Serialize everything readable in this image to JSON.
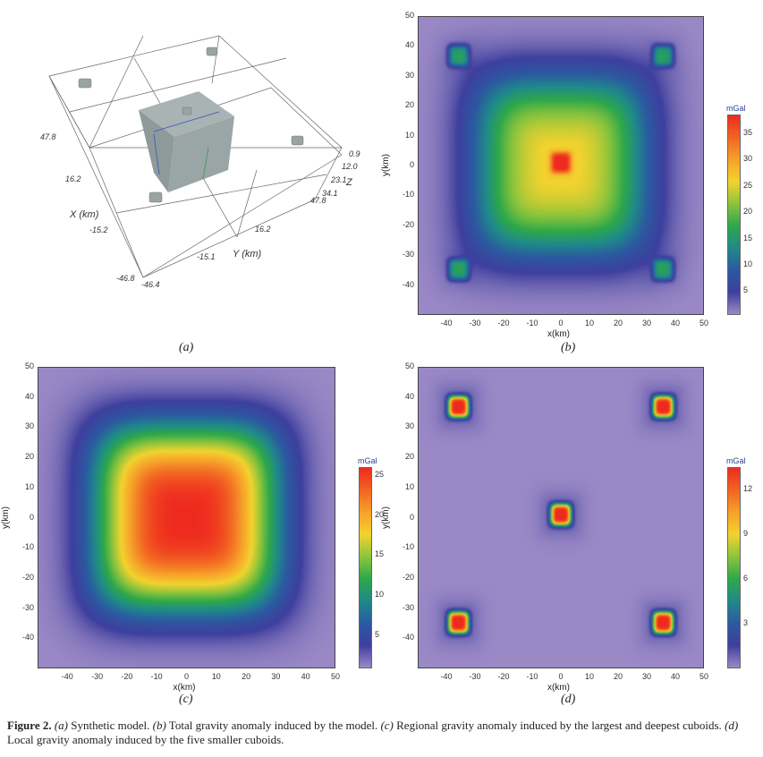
{
  "panel_a": {
    "label": "(a)",
    "axis_labels": {
      "x": "X (km)",
      "y": "Y (km)",
      "z": "Z"
    },
    "x_ticks": [
      "47.8",
      "16.2",
      "-15.2",
      "-46.8"
    ],
    "y_ticks": [
      "-46.4",
      "-15.1",
      "16.2",
      "47.8"
    ],
    "z_ticks": [
      "0.9",
      "12.0",
      "23.1",
      "34.1"
    ]
  },
  "chart_data": [
    {
      "id": "b",
      "label": "(b)",
      "type": "heatmap",
      "title": "Total gravity anomaly",
      "xlabel": "x(km)",
      "ylabel": "y(km)",
      "xlim": [
        -50,
        50
      ],
      "ylim": [
        -50,
        50
      ],
      "x_ticks": [
        "-40",
        "-30",
        "-20",
        "-10",
        "0",
        "10",
        "20",
        "30",
        "40",
        "50"
      ],
      "y_ticks": [
        "50",
        "40",
        "30",
        "20",
        "10",
        "0",
        "-10",
        "-20",
        "-30",
        "-40"
      ],
      "colorbar": {
        "unit": "mGal",
        "range": [
          0.5,
          38.5
        ],
        "ticks": [
          "35",
          "30",
          "25",
          "20",
          "15",
          "10",
          "5"
        ],
        "tick_values": [
          35,
          30,
          25,
          20,
          15,
          10,
          5
        ]
      },
      "peak_mGal": 38
    },
    {
      "id": "c",
      "label": "(c)",
      "type": "heatmap",
      "title": "Regional gravity anomaly",
      "xlabel": "x(km)",
      "ylabel": "y(km)",
      "xlim": [
        -50,
        50
      ],
      "ylim": [
        -50,
        50
      ],
      "x_ticks": [
        "-40",
        "-30",
        "-20",
        "-10",
        "0",
        "10",
        "20",
        "30",
        "40",
        "50"
      ],
      "y_ticks": [
        "50",
        "40",
        "30",
        "20",
        "10",
        "0",
        "-10",
        "-20",
        "-30",
        "-40"
      ],
      "colorbar": {
        "unit": "mGal",
        "range": [
          0.8,
          26
        ],
        "ticks": [
          "25",
          "20",
          "15",
          "10",
          "5"
        ],
        "tick_values": [
          25,
          20,
          15,
          10,
          5
        ]
      },
      "peak_mGal": 26
    },
    {
      "id": "d",
      "label": "(d)",
      "type": "heatmap",
      "title": "Local gravity anomaly",
      "xlabel": "x(km)",
      "ylabel": "y(km)",
      "xlim": [
        -50,
        50
      ],
      "ylim": [
        -50,
        50
      ],
      "x_ticks": [
        "-40",
        "-30",
        "-20",
        "-10",
        "0",
        "10",
        "20",
        "30",
        "40",
        "50"
      ],
      "y_ticks": [
        "50",
        "40",
        "30",
        "20",
        "10",
        "0",
        "-10",
        "-20",
        "-30",
        "-40"
      ],
      "colorbar": {
        "unit": "mGal",
        "range": [
          0,
          13.5
        ],
        "ticks": [
          "12",
          "9",
          "6",
          "3"
        ],
        "tick_values": [
          12,
          9,
          6,
          3
        ]
      },
      "peak_mGal": 13,
      "sources_km": [
        [
          -36,
          37
        ],
        [
          36,
          37
        ],
        [
          0,
          1
        ],
        [
          -36,
          -35
        ],
        [
          36,
          -35
        ]
      ]
    }
  ],
  "caption": {
    "fig": "Figure 2.",
    "parts": [
      {
        "tag": "(a)",
        "text": " Synthetic model. "
      },
      {
        "tag": "(b)",
        "text": " Total gravity anomaly induced by the model. "
      },
      {
        "tag": "(c)",
        "text": " Regional gravity anomaly induced by the largest and deepest cuboids. "
      },
      {
        "tag": "(d)",
        "text": " Local gravity anomaly induced by the five smaller cuboids."
      }
    ]
  },
  "colors": [
    "#9b89c6",
    "#3e3f9e",
    "#2b5aa0",
    "#1f8a8a",
    "#2ea84a",
    "#8cc43c",
    "#f2d32e",
    "#f7a12a",
    "#f26522",
    "#ee2a1f"
  ]
}
